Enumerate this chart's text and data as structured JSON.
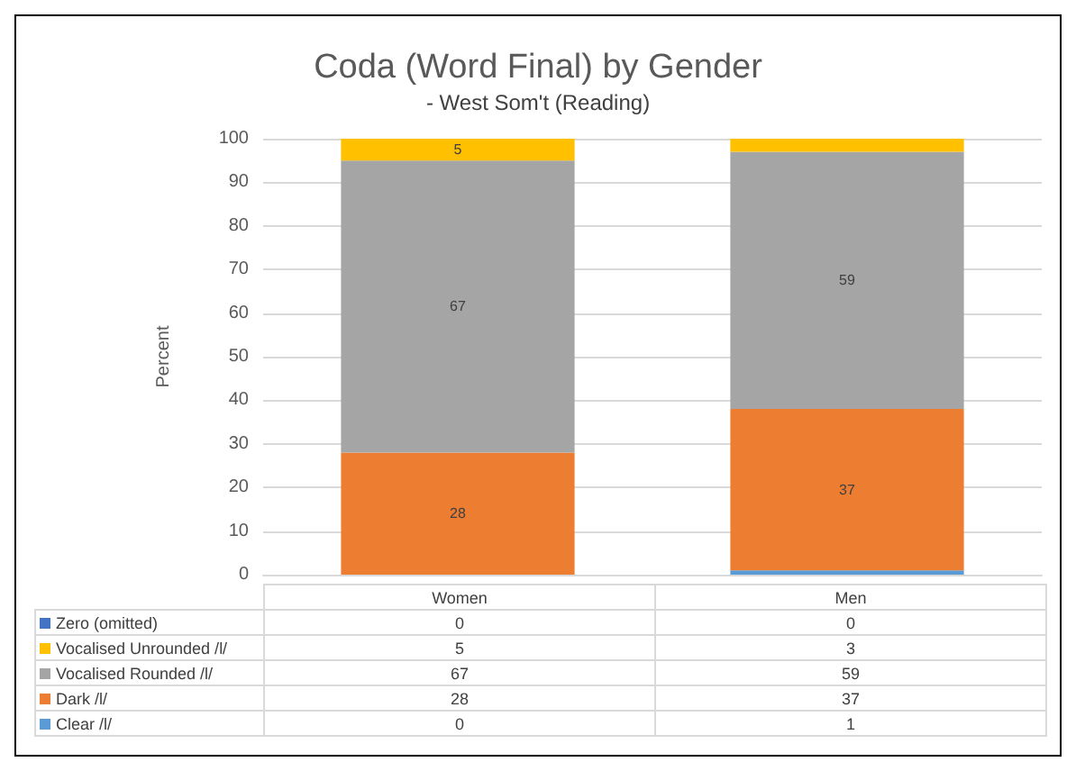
{
  "chart_data": {
    "type": "bar",
    "title": "Coda (Word Final) by Gender",
    "subtitle": "- West Som't (Reading)",
    "ylabel": "Percent",
    "categories": [
      "Women",
      "Men"
    ],
    "stacked": true,
    "grid": "y",
    "legend": "bottom",
    "ylim": [
      0,
      100
    ],
    "yticks": [
      0,
      10,
      20,
      30,
      40,
      50,
      60,
      70,
      80,
      90,
      100
    ],
    "series": [
      {
        "name": "Clear /l/",
        "color": "#5b9bd5",
        "values": [
          0,
          1
        ],
        "value_labels": [
          "0",
          "1"
        ]
      },
      {
        "name": "Dark /l/",
        "color": "#ed7d31",
        "values": [
          28,
          37
        ],
        "value_labels": [
          "28",
          "37"
        ]
      },
      {
        "name": "Vocalised Rounded /l/",
        "color": "#a5a5a5",
        "values": [
          67,
          59
        ],
        "value_labels": [
          "67",
          "59"
        ]
      },
      {
        "name": "Vocalised Unrounded /l/",
        "color": "#ffc000",
        "values": [
          5,
          3
        ],
        "value_labels": [
          "5",
          "3"
        ]
      },
      {
        "name": "Zero (omitted)",
        "color": "#4472c4",
        "values": [
          0,
          0
        ],
        "value_labels": [
          "0",
          "0"
        ]
      }
    ]
  }
}
